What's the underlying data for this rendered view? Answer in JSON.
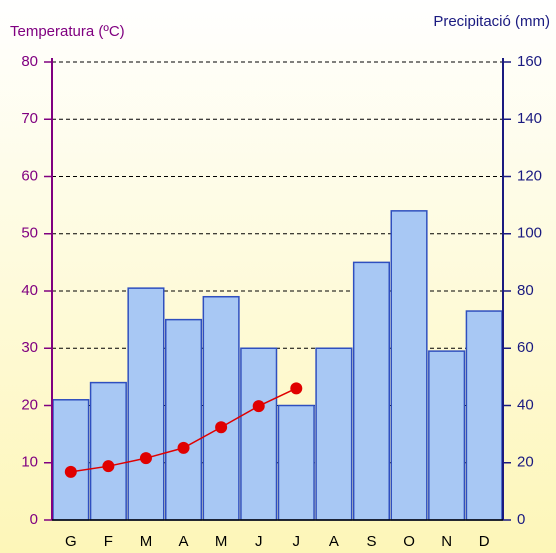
{
  "chart_data": {
    "type": "bar",
    "ylabel": "Temperatura (ºC)",
    "y2label": "Precipitació (mm)",
    "categories": [
      "G",
      "F",
      "M",
      "A",
      "M",
      "J",
      "J",
      "A",
      "S",
      "O",
      "N",
      "D"
    ],
    "series": [
      {
        "type": "bar",
        "axis": "y2",
        "color": "#a8c8f4",
        "values": [
          42,
          48,
          81,
          70,
          78,
          60,
          40,
          60,
          90,
          108,
          59,
          73
        ]
      },
      {
        "type": "line",
        "axis": "y",
        "color": "#e00000",
        "values": [
          8.4,
          9.4,
          10.8,
          12.6,
          16.2,
          19.9,
          23,
          null,
          null,
          null,
          null,
          null
        ]
      }
    ],
    "ylim": [
      0,
      80
    ],
    "yticks": [
      0,
      10,
      20,
      30,
      40,
      50,
      60,
      70,
      80
    ],
    "y2lim": [
      0,
      160
    ],
    "y2ticks": [
      0,
      20,
      40,
      60,
      80,
      100,
      120,
      140,
      160
    ],
    "grid": true
  }
}
